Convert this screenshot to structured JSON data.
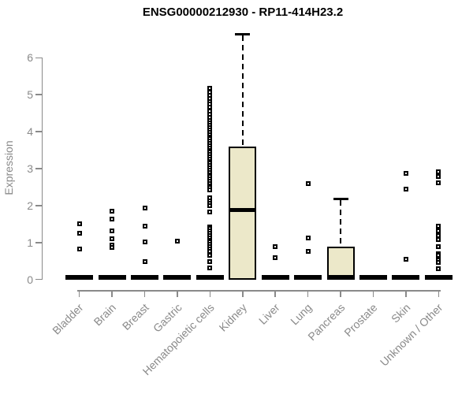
{
  "page": {
    "title": "ENSG00000212930 - RP11-414H23.2"
  },
  "chart_data": {
    "type": "boxplot",
    "title": "ENSG00000212930 - RP11-414H23.2",
    "xlabel": "",
    "ylabel": "Expression",
    "ylim": [
      0,
      6.7
    ],
    "yticks": [
      0,
      1,
      2,
      3,
      4,
      5,
      6
    ],
    "grid": false,
    "legend": "none",
    "colors": {
      "box_fill": "#ECE8C9",
      "box_border": "#000000",
      "median": "#000000",
      "whisker": "#000000",
      "outlier": "#000000",
      "axis": "#8A8A8A",
      "tick_labels": "#8A8A8A",
      "title": "#000000",
      "background": "#FFFFFF"
    },
    "categories": [
      "Bladder",
      "Brain",
      "Breast",
      "Gastric",
      "Hematopoietic cells",
      "Kidney",
      "Liver",
      "Lung",
      "Pancreas",
      "Prostate",
      "Skin",
      "Unknown / Other"
    ],
    "series": [
      {
        "category": "Bladder",
        "q1": 0,
        "median": 0,
        "q3": 0,
        "whisker_low": 0,
        "whisker_high": 0,
        "outliers": [
          1.5,
          1.26,
          0.82
        ]
      },
      {
        "category": "Brain",
        "q1": 0,
        "median": 0,
        "q3": 0,
        "whisker_low": 0,
        "whisker_high": 0,
        "outliers": [
          1.84,
          1.63,
          1.31,
          1.1,
          0.93,
          0.87
        ]
      },
      {
        "category": "Breast",
        "q1": 0,
        "median": 0,
        "q3": 0,
        "whisker_low": 0,
        "whisker_high": 0,
        "outliers": [
          1.93,
          1.45,
          1.02,
          0.48
        ]
      },
      {
        "category": "Gastric",
        "q1": 0,
        "median": 0,
        "q3": 0,
        "whisker_low": 0,
        "whisker_high": 0,
        "outliers": [
          1.04
        ]
      },
      {
        "category": "Hematopoietic cells",
        "q1": 0,
        "median": 0,
        "q3": 0,
        "whisker_low": 0,
        "whisker_high": 0,
        "outliers": [
          5.18,
          5.06,
          4.98,
          4.9,
          4.82,
          4.74,
          4.66,
          4.55,
          4.47,
          4.39,
          4.31,
          4.23,
          4.17,
          4.1,
          4.04,
          3.98,
          3.92,
          3.86,
          3.8,
          3.74,
          3.68,
          3.62,
          3.56,
          3.5,
          3.44,
          3.38,
          3.32,
          3.26,
          3.2,
          3.14,
          3.08,
          3.02,
          2.96,
          2.9,
          2.84,
          2.78,
          2.72,
          2.66,
          2.6,
          2.54,
          2.48,
          2.43,
          2.21,
          2.13,
          2.06,
          2.0,
          1.83,
          1.43,
          1.37,
          1.31,
          1.25,
          1.19,
          1.13,
          1.07,
          1.01,
          0.95,
          0.89,
          0.83,
          0.76,
          0.65,
          0.48,
          0.31
        ]
      },
      {
        "category": "Kidney",
        "q1": 0,
        "median": 1.88,
        "q3": 3.6,
        "whisker_low": 0,
        "whisker_high": 6.63,
        "outliers": []
      },
      {
        "category": "Liver",
        "q1": 0,
        "median": 0,
        "q3": 0,
        "whisker_low": 0,
        "whisker_high": 0,
        "outliers": [
          0.89,
          0.59
        ]
      },
      {
        "category": "Lung",
        "q1": 0,
        "median": 0,
        "q3": 0,
        "whisker_low": 0,
        "whisker_high": 0,
        "outliers": [
          2.59,
          1.12,
          0.77
        ]
      },
      {
        "category": "Pancreas",
        "q1": 0,
        "median": 0,
        "q3": 0.89,
        "whisker_low": 0,
        "whisker_high": 2.17,
        "outliers": []
      },
      {
        "category": "Prostate",
        "q1": 0,
        "median": 0,
        "q3": 0,
        "whisker_low": 0,
        "whisker_high": 0,
        "outliers": []
      },
      {
        "category": "Skin",
        "q1": 0,
        "median": 0,
        "q3": 0,
        "whisker_low": 0,
        "whisker_high": 0,
        "outliers": [
          2.87,
          2.44,
          0.54
        ]
      },
      {
        "category": "Unknown / Other",
        "q1": 0,
        "median": 0,
        "q3": 0,
        "whisker_low": 0,
        "whisker_high": 0,
        "outliers": [
          2.92,
          2.78,
          2.62,
          1.44,
          1.31,
          1.18,
          1.08,
          0.88,
          0.7,
          0.65,
          0.53,
          0.46,
          0.29
        ]
      }
    ]
  }
}
